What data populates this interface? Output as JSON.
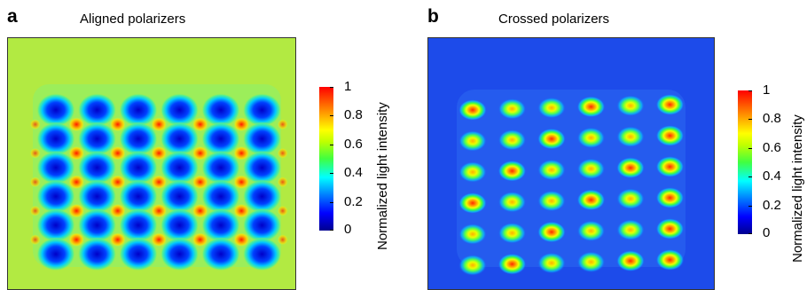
{
  "panels": [
    {
      "letter": "a",
      "title": "Aligned polarizers",
      "colorbar": {
        "label": "Normalized light intensity",
        "ticks": [
          "0",
          "0.2",
          "0.4",
          "0.6",
          "0.8",
          "1"
        ]
      },
      "grid": {
        "rows": 6,
        "cols": 6
      }
    },
    {
      "letter": "b",
      "title": "Crossed polarizers",
      "colorbar": {
        "label": "Normalized light intensity",
        "ticks": [
          "0",
          "0.2",
          "0.4",
          "0.6",
          "0.8",
          "1"
        ]
      },
      "grid": {
        "rows": 6,
        "cols": 6
      }
    }
  ],
  "colors": {
    "low": "#0000c8",
    "mid": "#40ff40",
    "high": "#ff0000",
    "background_a": "#b0ee40",
    "background_b": "#1d4bea"
  }
}
